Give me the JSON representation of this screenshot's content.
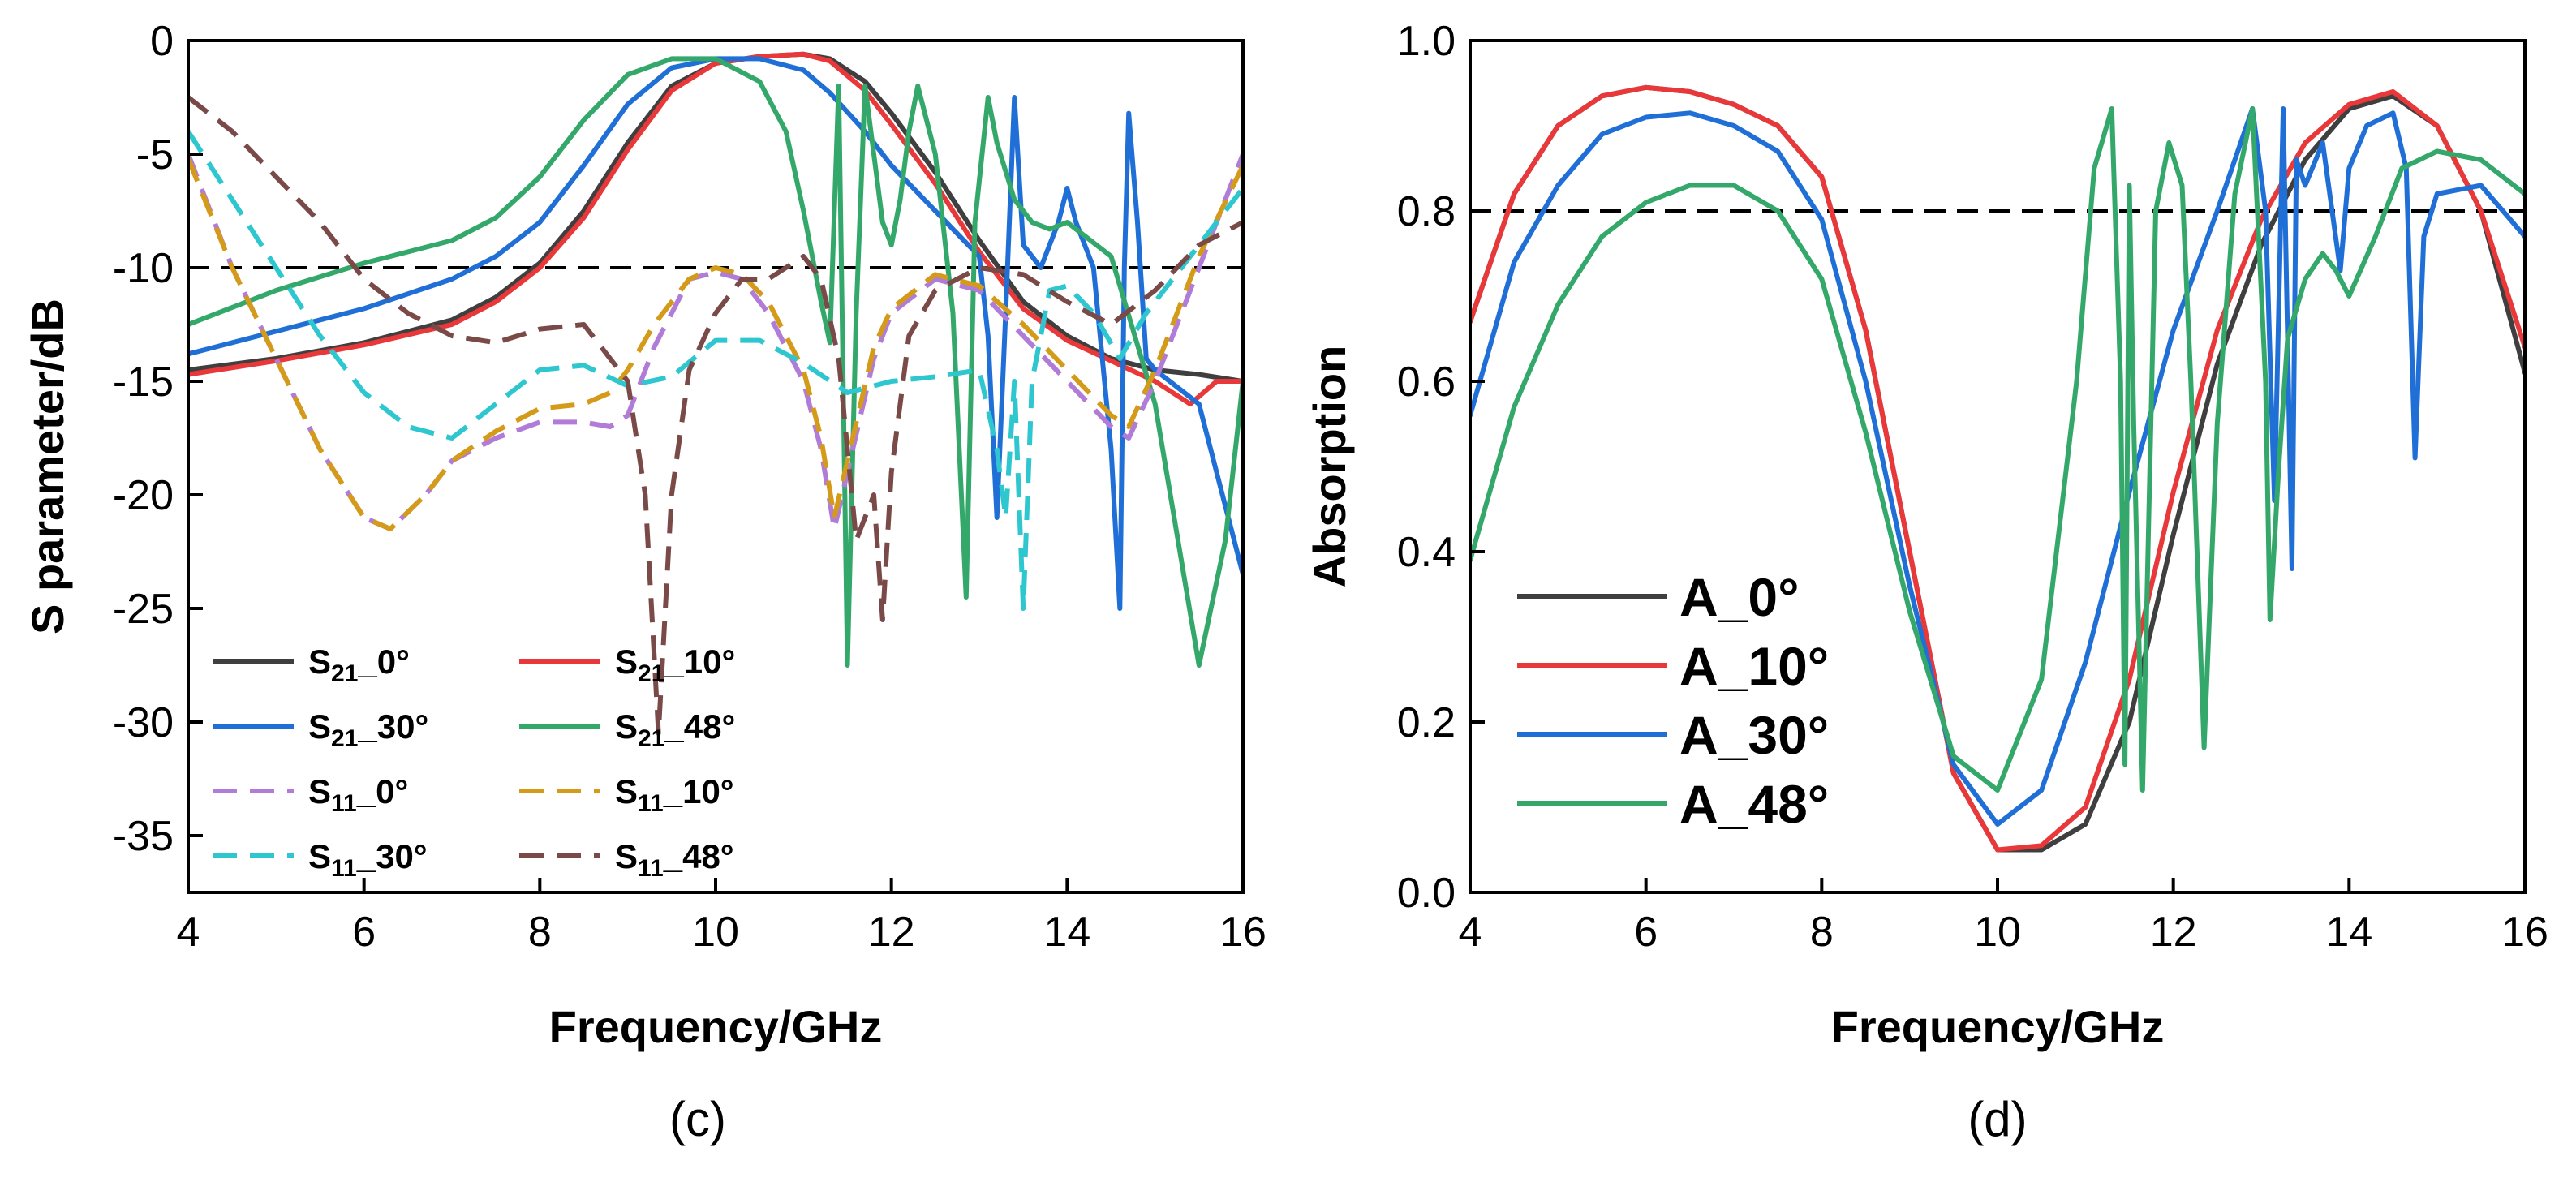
{
  "colors": {
    "black": "#3f3f3f",
    "red": "#e8383a",
    "blue": "#1f6fd6",
    "green": "#34a86a",
    "purple": "#b07cd8",
    "gold": "#d49a1a",
    "cyan": "#2fc7cf",
    "brown": "#7a4a48"
  },
  "chart_data": [
    {
      "type": "line",
      "panel_label": "(c)",
      "xlabel": "Frequency/GHz",
      "ylabel": "S parameter/dB",
      "xlim": [
        4,
        16
      ],
      "ylim": [
        -37.5,
        0
      ],
      "xticks": [
        4,
        6,
        8,
        10,
        12,
        14,
        16
      ],
      "xtick_labels": [
        "4",
        "6",
        "8",
        "10",
        "12",
        "14",
        "16"
      ],
      "yticks": [
        0,
        -5,
        -10,
        -15,
        -20,
        -25,
        -30,
        -35
      ],
      "ytick_labels": [
        "0",
        "-5",
        "-10",
        "-15",
        "-20",
        "-25",
        "-30",
        "-35"
      ],
      "reference_line": -10,
      "series": [
        {
          "name": "S21_0°",
          "legend_base": "S",
          "legend_sub": "21",
          "legend_suffix": "_0°",
          "style": "solid",
          "color_key": "black",
          "x": [
            4,
            5,
            6,
            7,
            7.5,
            8,
            8.5,
            9,
            9.5,
            10,
            10.5,
            11,
            11.3,
            11.7,
            12,
            12.5,
            13,
            13.5,
            14,
            14.5,
            15,
            15.5,
            16
          ],
          "y": [
            -14.5,
            -14,
            -13.3,
            -12.3,
            -11.3,
            -9.8,
            -7.5,
            -4.5,
            -2,
            -1,
            -0.7,
            -0.6,
            -0.8,
            -1.8,
            -3.2,
            -5.8,
            -8.8,
            -11.5,
            -13,
            -14,
            -14.5,
            -14.7,
            -15
          ]
        },
        {
          "name": "S21_10°",
          "legend_base": "S",
          "legend_sub": "21",
          "legend_suffix": "_10°",
          "style": "solid",
          "color_key": "red",
          "x": [
            4,
            5,
            6,
            7,
            7.5,
            8,
            8.5,
            9,
            9.5,
            10,
            10.5,
            11,
            11.3,
            11.7,
            12,
            12.5,
            13,
            13.5,
            14,
            14.5,
            15,
            15.4,
            15.7,
            16
          ],
          "y": [
            -14.7,
            -14.1,
            -13.4,
            -12.5,
            -11.5,
            -10,
            -7.8,
            -4.8,
            -2.2,
            -1,
            -0.7,
            -0.6,
            -0.9,
            -2.2,
            -3.7,
            -6.3,
            -9.3,
            -11.8,
            -13.2,
            -14.1,
            -15,
            -16,
            -15,
            -15
          ]
        },
        {
          "name": "S21_30°",
          "legend_base": "S",
          "legend_sub": "21",
          "legend_suffix": "_30°",
          "style": "solid",
          "color_key": "blue",
          "x": [
            4,
            5,
            6,
            7,
            7.5,
            8,
            8.5,
            9,
            9.5,
            10,
            10.5,
            11,
            11.3,
            11.7,
            12,
            12.5,
            13,
            13.1,
            13.2,
            13.3,
            13.4,
            13.5,
            13.7,
            13.9,
            14,
            14.1,
            14.3,
            14.5,
            14.6,
            14.65,
            14.7,
            14.8,
            14.9,
            15,
            15.5,
            16
          ],
          "y": [
            -13.8,
            -12.8,
            -11.8,
            -10.5,
            -9.5,
            -8,
            -5.5,
            -2.8,
            -1.2,
            -0.8,
            -0.8,
            -1.3,
            -2.3,
            -4,
            -5.5,
            -7.5,
            -9.5,
            -13,
            -21,
            -12,
            -2.5,
            -9,
            -10,
            -8,
            -6.5,
            -8,
            -10,
            -18,
            -25,
            -10,
            -3.2,
            -8,
            -14,
            -14.5,
            -16,
            -23.5
          ]
        },
        {
          "name": "S21_48°",
          "legend_base": "S",
          "legend_sub": "21",
          "legend_suffix": "_48°",
          "style": "solid",
          "color_key": "green",
          "x": [
            4,
            5,
            6,
            7,
            7.5,
            8,
            8.5,
            9,
            9.5,
            10,
            10.5,
            10.8,
            11,
            11.2,
            11.3,
            11.4,
            11.5,
            11.6,
            11.7,
            11.8,
            11.9,
            12,
            12.1,
            12.2,
            12.3,
            12.5,
            12.7,
            12.85,
            12.95,
            13.1,
            13.2,
            13.4,
            13.6,
            13.8,
            14,
            14.5,
            15,
            15.5,
            15.8,
            16
          ],
          "y": [
            -12.5,
            -11,
            -9.8,
            -8.8,
            -7.8,
            -6,
            -3.5,
            -1.5,
            -0.8,
            -0.8,
            -1.8,
            -4,
            -7.5,
            -11.5,
            -13.3,
            -2,
            -27.5,
            -12,
            -2,
            -5,
            -8,
            -9,
            -7,
            -4,
            -2,
            -5,
            -12,
            -24.5,
            -8,
            -2.5,
            -4.5,
            -7,
            -8,
            -8.3,
            -8,
            -9.5,
            -16,
            -27.5,
            -22,
            -15
          ]
        },
        {
          "name": "S11_0°",
          "legend_base": "S",
          "legend_sub": "11",
          "legend_suffix": "_0°",
          "style": "dashed",
          "color_key": "purple",
          "x": [
            4,
            4.5,
            5,
            5.5,
            6,
            6.3,
            6.7,
            7,
            7.5,
            8,
            8.5,
            8.8,
            9,
            9.3,
            9.7,
            10,
            10.3,
            10.6,
            11,
            11.2,
            11.35,
            11.5,
            11.8,
            12,
            12.5,
            13,
            13.5,
            14,
            14.5,
            14.7,
            15,
            15.5,
            16
          ],
          "y": [
            -5,
            -10,
            -14,
            -18,
            -21,
            -21.5,
            -20,
            -18.5,
            -17.5,
            -16.8,
            -16.8,
            -17,
            -16.5,
            -13.5,
            -10.5,
            -10.2,
            -10.5,
            -12,
            -15,
            -18,
            -21.5,
            -19,
            -14,
            -12,
            -10.5,
            -11,
            -13,
            -15,
            -17,
            -17.5,
            -15,
            -10,
            -5
          ]
        },
        {
          "name": "S11_10°",
          "legend_base": "S",
          "legend_sub": "11",
          "legend_suffix": "_10°",
          "style": "dashed",
          "color_key": "gold",
          "x": [
            4,
            4.5,
            5,
            5.5,
            6,
            6.3,
            6.7,
            7,
            7.5,
            8,
            8.5,
            8.8,
            9,
            9.3,
            9.7,
            10,
            10.3,
            10.6,
            11,
            11.2,
            11.35,
            11.5,
            11.8,
            12,
            12.5,
            13,
            13.5,
            14,
            14.5,
            14.7,
            15,
            15.5,
            16
          ],
          "y": [
            -5.2,
            -10,
            -14,
            -18,
            -21,
            -21.5,
            -20,
            -18.5,
            -17.2,
            -16.2,
            -16,
            -15.5,
            -14.5,
            -12.5,
            -10.5,
            -10,
            -10.3,
            -11.5,
            -14.5,
            -17.5,
            -21,
            -18.5,
            -13.5,
            -11.8,
            -10.3,
            -10.8,
            -12.5,
            -14.5,
            -16.5,
            -17,
            -14.5,
            -9.5,
            -5.5
          ]
        },
        {
          "name": "S11_30°",
          "legend_base": "S",
          "legend_sub": "11",
          "legend_suffix": "_30°",
          "style": "dashed",
          "color_key": "cyan",
          "x": [
            4,
            4.5,
            5,
            5.5,
            6,
            6.5,
            7,
            7.5,
            8,
            8.5,
            9,
            9.5,
            10,
            10.5,
            11,
            11.5,
            12,
            12.5,
            13,
            13.2,
            13.3,
            13.4,
            13.5,
            13.6,
            13.8,
            14,
            14.3,
            14.6,
            14.9,
            15.3,
            15.7,
            16
          ],
          "y": [
            -4,
            -7,
            -10,
            -13,
            -15.5,
            -17,
            -17.5,
            -16,
            -14.5,
            -14.3,
            -15.2,
            -14.8,
            -13.2,
            -13.2,
            -14.2,
            -15.5,
            -15,
            -14.8,
            -14.5,
            -18,
            -21,
            -15,
            -25,
            -15,
            -11,
            -10.8,
            -12,
            -14,
            -12,
            -10,
            -8,
            -6.5
          ]
        },
        {
          "name": "S11_48°",
          "legend_base": "S",
          "legend_sub": "11",
          "legend_suffix": "_48°",
          "style": "dashed",
          "color_key": "brown",
          "x": [
            4,
            4.5,
            5,
            5.5,
            6,
            6.5,
            7,
            7.5,
            8,
            8.5,
            9,
            9.2,
            9.35,
            9.5,
            9.7,
            10,
            10.3,
            10.6,
            11,
            11.2,
            11.4,
            11.6,
            11.8,
            11.9,
            12,
            12.2,
            12.5,
            13,
            13.5,
            14,
            14.5,
            15,
            15.5,
            16
          ],
          "y": [
            -2.5,
            -4,
            -6,
            -8,
            -10.5,
            -12,
            -13,
            -13.3,
            -12.7,
            -12.5,
            -15,
            -20,
            -30.5,
            -20,
            -14.5,
            -12,
            -10.5,
            -10.5,
            -9.5,
            -10.5,
            -14,
            -22,
            -20,
            -25.5,
            -19,
            -13,
            -11,
            -10,
            -10.3,
            -11.5,
            -12.5,
            -11,
            -9,
            -8
          ]
        }
      ],
      "legend": {
        "position": "bottom-left",
        "columns": 2
      }
    },
    {
      "type": "line",
      "panel_label": "(d)",
      "xlabel": "Frequency/GHz",
      "ylabel": "Absorption",
      "xlim": [
        4,
        16
      ],
      "ylim": [
        0,
        1
      ],
      "xticks": [
        4,
        6,
        8,
        10,
        12,
        14,
        16
      ],
      "xtick_labels": [
        "4",
        "6",
        "8",
        "10",
        "12",
        "14",
        "16"
      ],
      "yticks": [
        0,
        0.2,
        0.4,
        0.6,
        0.8,
        1.0
      ],
      "ytick_labels": [
        "0.0",
        "0.2",
        "0.4",
        "0.6",
        "0.8",
        "1.0"
      ],
      "reference_line": 0.8,
      "series": [
        {
          "name": "A_0°",
          "legend_label": "A_0°",
          "color_key": "black",
          "x": [
            4,
            4.5,
            5,
            5.5,
            6,
            6.5,
            7,
            7.5,
            8,
            8.5,
            9,
            9.5,
            10,
            10.5,
            11,
            11.5,
            12,
            12.5,
            13,
            13.5,
            14,
            14.5,
            15,
            15.5,
            16
          ],
          "y": [
            0.67,
            0.82,
            0.9,
            0.935,
            0.945,
            0.94,
            0.925,
            0.9,
            0.84,
            0.66,
            0.4,
            0.14,
            0.05,
            0.05,
            0.08,
            0.2,
            0.42,
            0.62,
            0.76,
            0.86,
            0.92,
            0.935,
            0.9,
            0.8,
            0.61
          ]
        },
        {
          "name": "A_10°",
          "legend_label": "A_10°",
          "color_key": "red",
          "x": [
            4,
            4.5,
            5,
            5.5,
            6,
            6.5,
            7,
            7.5,
            8,
            8.5,
            9,
            9.5,
            10,
            10.5,
            11,
            11.5,
            12,
            12.5,
            13,
            13.5,
            14,
            14.5,
            15,
            15.5,
            16
          ],
          "y": [
            0.67,
            0.82,
            0.9,
            0.935,
            0.945,
            0.94,
            0.925,
            0.9,
            0.84,
            0.66,
            0.4,
            0.14,
            0.05,
            0.055,
            0.1,
            0.25,
            0.47,
            0.66,
            0.79,
            0.88,
            0.925,
            0.94,
            0.9,
            0.8,
            0.64
          ]
        },
        {
          "name": "A_30°",
          "legend_label": "A_30°",
          "color_key": "blue",
          "x": [
            4,
            4.5,
            5,
            5.5,
            6,
            6.5,
            7,
            7.5,
            8,
            8.5,
            9,
            9.5,
            10,
            10.5,
            11,
            11.5,
            12,
            12.5,
            12.9,
            13.05,
            13.15,
            13.25,
            13.35,
            13.4,
            13.5,
            13.7,
            13.9,
            14,
            14.2,
            14.5,
            14.65,
            14.75,
            14.85,
            15,
            15.5,
            16
          ],
          "y": [
            0.56,
            0.74,
            0.83,
            0.89,
            0.91,
            0.915,
            0.9,
            0.87,
            0.79,
            0.6,
            0.36,
            0.15,
            0.08,
            0.12,
            0.27,
            0.47,
            0.66,
            0.8,
            0.92,
            0.8,
            0.46,
            0.92,
            0.38,
            0.86,
            0.83,
            0.88,
            0.73,
            0.85,
            0.9,
            0.915,
            0.85,
            0.51,
            0.77,
            0.82,
            0.83,
            0.77
          ]
        },
        {
          "name": "A_48°",
          "legend_label": "A_48°",
          "color_key": "green",
          "x": [
            4,
            4.5,
            5,
            5.5,
            6,
            6.5,
            7,
            7.5,
            8,
            8.5,
            9,
            9.5,
            10,
            10.5,
            10.9,
            11.1,
            11.3,
            11.4,
            11.45,
            11.5,
            11.55,
            11.65,
            11.8,
            11.95,
            12.1,
            12.2,
            12.35,
            12.5,
            12.7,
            12.9,
            13.05,
            13.1,
            13.2,
            13.3,
            13.5,
            13.7,
            13.85,
            14,
            14.3,
            14.6,
            15,
            15.5,
            16
          ],
          "y": [
            0.39,
            0.57,
            0.69,
            0.77,
            0.81,
            0.83,
            0.83,
            0.8,
            0.72,
            0.54,
            0.33,
            0.16,
            0.12,
            0.25,
            0.6,
            0.85,
            0.92,
            0.6,
            0.15,
            0.83,
            0.55,
            0.12,
            0.8,
            0.88,
            0.83,
            0.6,
            0.17,
            0.55,
            0.82,
            0.92,
            0.6,
            0.32,
            0.5,
            0.65,
            0.72,
            0.75,
            0.73,
            0.7,
            0.77,
            0.85,
            0.87,
            0.86,
            0.82
          ]
        }
      ],
      "legend": {
        "position": "bottom-left",
        "columns": 1
      }
    }
  ]
}
